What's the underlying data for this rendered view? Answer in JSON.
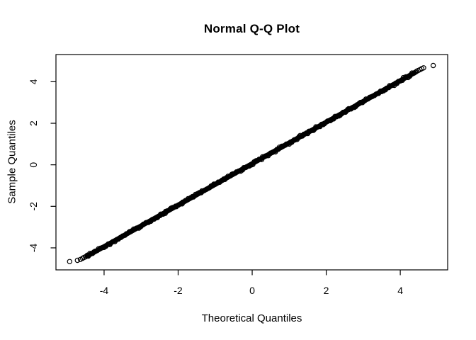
{
  "page": {
    "background_color": "#ffffff",
    "foreground_color": "#000000"
  },
  "chart_data": {
    "type": "scatter",
    "title": "Normal Q-Q Plot",
    "xlabel": "Theoretical Quantiles",
    "ylabel": "Sample Quantiles",
    "xlim": [
      -5.3,
      5.28
    ],
    "ylim": [
      -5.06,
      5.31
    ],
    "x_ticks": [
      -4,
      -2,
      0,
      2,
      4
    ],
    "y_ticks": [
      -4,
      -2,
      0,
      2,
      4
    ],
    "grid": false,
    "legend": "none",
    "marker": "open-circle",
    "marker_color": "#000000",
    "marker_radius_px": 3.1,
    "series": [
      {
        "name": "qq-points",
        "dense_band": {
          "from": [
            -4.46,
            -4.4
          ],
          "to": [
            4.38,
            4.43
          ],
          "passes_through": [
            0,
            0
          ],
          "approx_thickness_px": 10,
          "visual_circle_count": 190
        },
        "lower_tail_points": [
          [
            -4.93,
            -4.66
          ],
          [
            -4.72,
            -4.6
          ],
          [
            -4.64,
            -4.56
          ],
          [
            -4.58,
            -4.5
          ],
          [
            -4.54,
            -4.46
          ],
          [
            -4.5,
            -4.43
          ]
        ],
        "upper_tail_points": [
          [
            4.41,
            4.46
          ],
          [
            4.44,
            4.5
          ],
          [
            4.48,
            4.54
          ],
          [
            4.53,
            4.58
          ],
          [
            4.58,
            4.63
          ],
          [
            4.63,
            4.67
          ],
          [
            4.89,
            4.78
          ]
        ]
      }
    ]
  }
}
